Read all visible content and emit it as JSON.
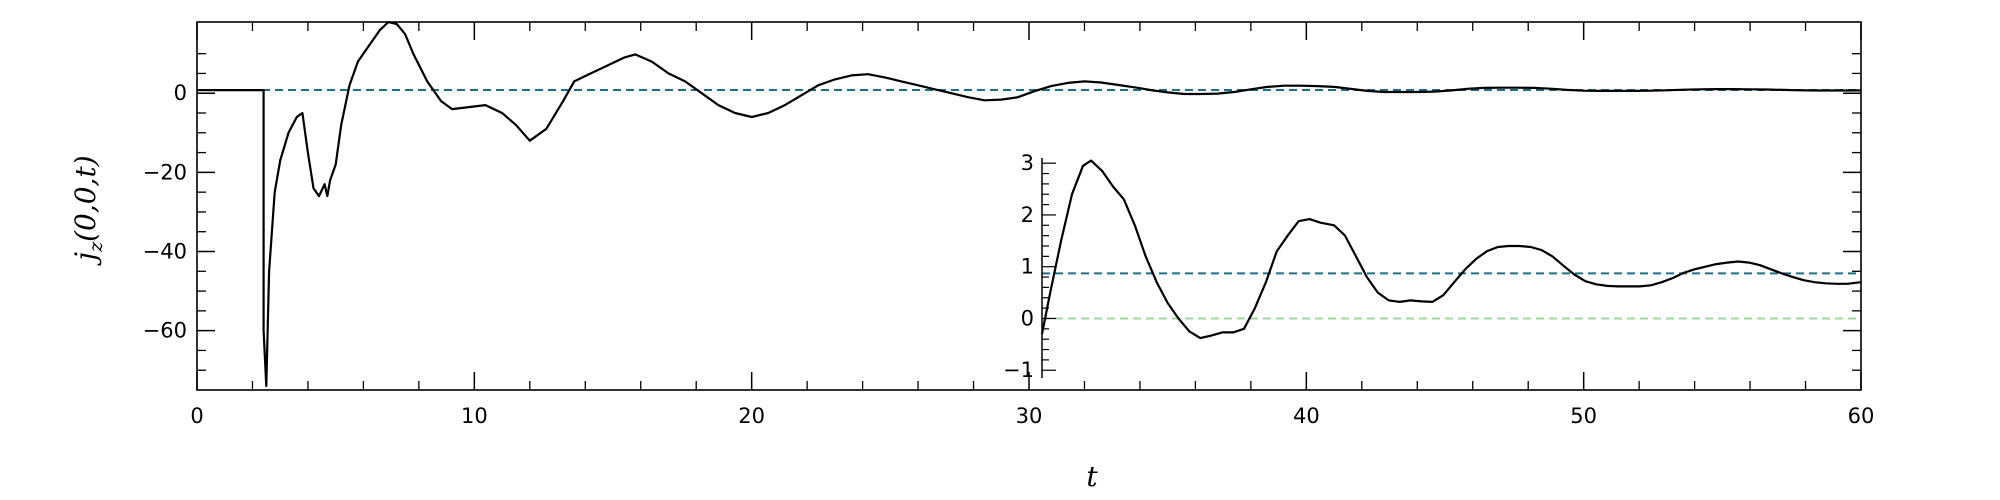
{
  "chart_data": [
    {
      "type": "line",
      "xlabel": "t",
      "ylabel": "j_z(0,0,t)",
      "ylabel_parts": {
        "main": "j",
        "sub": "z",
        "args": "(0,0,t)"
      },
      "xlim": [
        0,
        60
      ],
      "ylim": [
        -75,
        18
      ],
      "x_ticks": [
        0,
        10,
        20,
        30,
        40,
        50,
        60
      ],
      "x_tick_labels": [
        "0",
        "10",
        "20",
        "30",
        "40",
        "50",
        "60"
      ],
      "y_ticks": [
        -60,
        -40,
        -20,
        0
      ],
      "y_tick_labels": [
        "−60",
        "−40",
        "−20",
        "0"
      ],
      "reference_lines": [
        {
          "y": 0.8,
          "style": "dashed",
          "color": "#1f6f8b"
        }
      ],
      "series": [
        {
          "color": "#000000",
          "points": [
            [
              0,
              0.8
            ],
            [
              2.4,
              0.8
            ],
            [
              2.4,
              -60
            ],
            [
              2.5,
              -74
            ],
            [
              2.6,
              -45
            ],
            [
              2.8,
              -25
            ],
            [
              3.0,
              -17
            ],
            [
              3.3,
              -10
            ],
            [
              3.6,
              -6
            ],
            [
              3.8,
              -5
            ],
            [
              4.0,
              -15
            ],
            [
              4.2,
              -24
            ],
            [
              4.4,
              -26
            ],
            [
              4.6,
              -23
            ],
            [
              4.7,
              -26
            ],
            [
              4.8,
              -22
            ],
            [
              5.0,
              -18
            ],
            [
              5.2,
              -8
            ],
            [
              5.5,
              2
            ],
            [
              5.8,
              8
            ],
            [
              6.2,
              12
            ],
            [
              6.6,
              16
            ],
            [
              6.9,
              18
            ],
            [
              7.2,
              17.5
            ],
            [
              7.5,
              15
            ],
            [
              7.8,
              10
            ],
            [
              8.3,
              3
            ],
            [
              8.8,
              -2
            ],
            [
              9.2,
              -4
            ],
            [
              9.8,
              -3.5
            ],
            [
              10.4,
              -3
            ],
            [
              11.0,
              -5
            ],
            [
              11.5,
              -8
            ],
            [
              12.0,
              -12
            ],
            [
              12.6,
              -9
            ],
            [
              13.2,
              -2
            ],
            [
              13.6,
              3
            ],
            [
              14.2,
              5
            ],
            [
              14.8,
              7
            ],
            [
              15.4,
              9
            ],
            [
              15.8,
              9.8
            ],
            [
              16.4,
              8
            ],
            [
              17.0,
              5
            ],
            [
              17.6,
              3
            ],
            [
              18.2,
              0
            ],
            [
              18.8,
              -3
            ],
            [
              19.4,
              -5
            ],
            [
              20.0,
              -6
            ],
            [
              20.6,
              -5
            ],
            [
              21.2,
              -3
            ],
            [
              21.8,
              -0.5
            ],
            [
              22.4,
              2
            ],
            [
              23.0,
              3.5
            ],
            [
              23.6,
              4.5
            ],
            [
              24.2,
              4.8
            ],
            [
              24.8,
              4
            ],
            [
              25.4,
              3
            ],
            [
              26.0,
              2
            ],
            [
              26.6,
              1
            ],
            [
              27.2,
              0
            ],
            [
              27.8,
              -1
            ],
            [
              28.4,
              -1.8
            ],
            [
              29.0,
              -1.6
            ],
            [
              29.6,
              -1
            ],
            [
              30.2,
              0.5
            ],
            [
              30.8,
              1.8
            ],
            [
              31.4,
              2.6
            ],
            [
              32.0,
              3
            ],
            [
              32.6,
              2.7
            ],
            [
              33.2,
              2.1
            ],
            [
              33.8,
              1.5
            ],
            [
              34.4,
              0.8
            ],
            [
              35.0,
              0.2
            ],
            [
              35.6,
              -0.2
            ],
            [
              36.2,
              -0.2
            ],
            [
              36.8,
              -0.1
            ],
            [
              37.4,
              0.3
            ],
            [
              38.0,
              1
            ],
            [
              38.6,
              1.6
            ],
            [
              39.2,
              1.9
            ],
            [
              39.8,
              1.9
            ],
            [
              40.4,
              1.8
            ],
            [
              41.0,
              1.6
            ],
            [
              41.6,
              1.1
            ],
            [
              42.2,
              0.6
            ],
            [
              42.8,
              0.3
            ],
            [
              43.4,
              0.3
            ],
            [
              44.0,
              0.3
            ],
            [
              44.6,
              0.4
            ],
            [
              45.2,
              0.7
            ],
            [
              45.8,
              1.1
            ],
            [
              46.4,
              1.35
            ],
            [
              47.0,
              1.4
            ],
            [
              47.6,
              1.4
            ],
            [
              48.2,
              1.35
            ],
            [
              48.8,
              1.15
            ],
            [
              49.4,
              0.85
            ],
            [
              50.0,
              0.65
            ],
            [
              50.6,
              0.6
            ],
            [
              51.2,
              0.6
            ],
            [
              51.8,
              0.6
            ],
            [
              52.4,
              0.65
            ],
            [
              53.0,
              0.75
            ],
            [
              53.6,
              0.9
            ],
            [
              54.2,
              1.0
            ],
            [
              54.8,
              1.05
            ],
            [
              55.4,
              1.05
            ],
            [
              56.0,
              1.0
            ],
            [
              56.6,
              0.95
            ],
            [
              57.2,
              0.85
            ],
            [
              57.8,
              0.75
            ],
            [
              58.4,
              0.7
            ],
            [
              59.0,
              0.7
            ],
            [
              59.5,
              0.7
            ],
            [
              60.0,
              0.72
            ]
          ]
        }
      ]
    },
    {
      "type": "line",
      "xlim": [
        30,
        60
      ],
      "ylim": [
        -1.15,
        3.1
      ],
      "y_ticks": [
        -1,
        0,
        1,
        2,
        3
      ],
      "y_tick_labels": [
        "−1",
        "0",
        "1",
        "2",
        "3"
      ],
      "reference_lines": [
        {
          "y": 0.87,
          "style": "dashed",
          "color": "#1f6f8b"
        },
        {
          "y": 0.0,
          "style": "dashed",
          "color": "#9fd89f"
        }
      ],
      "series": [
        {
          "color": "#000000",
          "points": [
            [
              30.0,
              -0.3
            ],
            [
              30.3,
              0.5
            ],
            [
              30.7,
              1.5
            ],
            [
              31.1,
              2.4
            ],
            [
              31.5,
              2.95
            ],
            [
              31.8,
              3.05
            ],
            [
              32.2,
              2.85
            ],
            [
              32.6,
              2.55
            ],
            [
              33.0,
              2.3
            ],
            [
              33.4,
              1.8
            ],
            [
              33.8,
              1.2
            ],
            [
              34.2,
              0.7
            ],
            [
              34.6,
              0.3
            ],
            [
              35.0,
              0.0
            ],
            [
              35.4,
              -0.25
            ],
            [
              35.8,
              -0.38
            ],
            [
              36.2,
              -0.33
            ],
            [
              36.6,
              -0.27
            ],
            [
              37.0,
              -0.27
            ],
            [
              37.4,
              -0.2
            ],
            [
              37.8,
              0.2
            ],
            [
              38.2,
              0.7
            ],
            [
              38.6,
              1.3
            ],
            [
              39.0,
              1.6
            ],
            [
              39.4,
              1.88
            ],
            [
              39.8,
              1.92
            ],
            [
              40.2,
              1.85
            ],
            [
              40.7,
              1.8
            ],
            [
              41.1,
              1.6
            ],
            [
              41.5,
              1.2
            ],
            [
              41.9,
              0.8
            ],
            [
              42.3,
              0.5
            ],
            [
              42.7,
              0.35
            ],
            [
              43.1,
              0.32
            ],
            [
              43.5,
              0.35
            ],
            [
              43.9,
              0.33
            ],
            [
              44.3,
              0.32
            ],
            [
              44.7,
              0.45
            ],
            [
              45.1,
              0.7
            ],
            [
              45.5,
              0.95
            ],
            [
              45.9,
              1.15
            ],
            [
              46.3,
              1.3
            ],
            [
              46.7,
              1.38
            ],
            [
              47.1,
              1.4
            ],
            [
              47.5,
              1.4
            ],
            [
              47.9,
              1.38
            ],
            [
              48.3,
              1.32
            ],
            [
              48.7,
              1.2
            ],
            [
              49.1,
              1.02
            ],
            [
              49.5,
              0.85
            ],
            [
              49.9,
              0.72
            ],
            [
              50.3,
              0.66
            ],
            [
              50.7,
              0.63
            ],
            [
              51.1,
              0.62
            ],
            [
              51.5,
              0.62
            ],
            [
              51.9,
              0.62
            ],
            [
              52.3,
              0.64
            ],
            [
              52.7,
              0.7
            ],
            [
              53.1,
              0.78
            ],
            [
              53.5,
              0.88
            ],
            [
              53.9,
              0.95
            ],
            [
              54.3,
              1.0
            ],
            [
              54.7,
              1.05
            ],
            [
              55.1,
              1.08
            ],
            [
              55.5,
              1.1
            ],
            [
              55.9,
              1.08
            ],
            [
              56.3,
              1.03
            ],
            [
              56.7,
              0.95
            ],
            [
              57.1,
              0.87
            ],
            [
              57.5,
              0.8
            ],
            [
              57.9,
              0.74
            ],
            [
              58.3,
              0.7
            ],
            [
              58.7,
              0.68
            ],
            [
              59.1,
              0.67
            ],
            [
              59.5,
              0.67
            ],
            [
              60.0,
              0.7
            ]
          ]
        }
      ]
    }
  ]
}
